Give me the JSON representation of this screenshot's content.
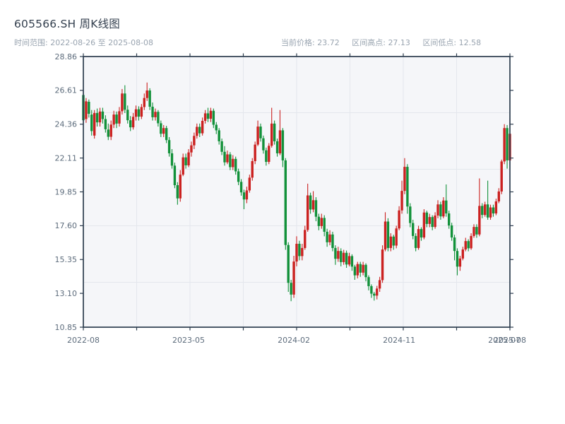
{
  "header": {
    "title": "605566.SH 周K线图",
    "range_label": "时间范围: 2022-08-26 至 2025-08-08",
    "stats": {
      "current": {
        "label": "当前价格:",
        "value": "23.72"
      },
      "high": {
        "label": "区间高点:",
        "value": "27.13"
      },
      "low": {
        "label": "区间低点:",
        "value": "12.58"
      }
    }
  },
  "chart_data": {
    "type": "candlestick",
    "symbol": "605566.SH",
    "interval": "weekly",
    "start_date": "2022-08-26",
    "end_date": "2025-08-08",
    "current_price": 23.72,
    "range_high": 27.13,
    "range_low": 12.58,
    "ylim": [
      10.85,
      28.86
    ],
    "y_tick_labels": [
      "28.86",
      "26.61",
      "24.36",
      "22.11",
      "19.85",
      "17.60",
      "15.35",
      "13.10",
      "10.85"
    ],
    "x_labels": [
      {
        "week": 0,
        "label": "2022-08"
      },
      {
        "week": 38,
        "label": "2023-05"
      },
      {
        "week": 76,
        "label": "2024-02"
      },
      {
        "week": 114,
        "label": "2024-11"
      },
      {
        "week": 152,
        "label": "2025-07"
      },
      {
        "week": 154,
        "label": "2025-08"
      }
    ],
    "num_weeks": 155,
    "up_color": "#cb2120",
    "down_color": "#12913a",
    "ohlc": [
      [
        26.3,
        26.6,
        24.4,
        24.62
      ],
      [
        24.7,
        26.1,
        24.45,
        25.88
      ],
      [
        25.85,
        26.0,
        24.8,
        25.05
      ],
      [
        25.0,
        25.3,
        23.6,
        23.9
      ],
      [
        23.6,
        25.3,
        23.4,
        25.1
      ],
      [
        25.1,
        25.4,
        24.2,
        24.48
      ],
      [
        24.48,
        25.45,
        24.2,
        25.2
      ],
      [
        25.2,
        25.45,
        24.4,
        24.7
      ],
      [
        24.7,
        24.95,
        23.8,
        24.02
      ],
      [
        24.0,
        24.4,
        23.3,
        23.52
      ],
      [
        23.52,
        24.6,
        23.3,
        24.33
      ],
      [
        24.33,
        25.25,
        24.1,
        25.0
      ],
      [
        25.0,
        25.2,
        24.1,
        24.4
      ],
      [
        24.4,
        25.5,
        24.2,
        25.22
      ],
      [
        25.22,
        26.7,
        25.0,
        26.4
      ],
      [
        26.4,
        26.95,
        25.1,
        25.32
      ],
      [
        25.32,
        25.6,
        24.4,
        24.62
      ],
      [
        24.62,
        24.9,
        23.9,
        24.15
      ],
      [
        24.15,
        25.1,
        24.0,
        24.85
      ],
      [
        24.85,
        25.6,
        24.6,
        25.35
      ],
      [
        25.35,
        25.55,
        24.6,
        24.86
      ],
      [
        24.86,
        25.7,
        24.7,
        25.5
      ],
      [
        25.5,
        26.4,
        25.3,
        26.1
      ],
      [
        26.1,
        27.13,
        25.9,
        26.6
      ],
      [
        26.6,
        26.75,
        25.3,
        25.52
      ],
      [
        25.52,
        25.8,
        24.6,
        24.82
      ],
      [
        24.82,
        25.4,
        24.6,
        25.18
      ],
      [
        25.18,
        25.3,
        24.2,
        24.42
      ],
      [
        24.42,
        24.6,
        23.5,
        23.72
      ],
      [
        23.72,
        24.3,
        23.5,
        24.1
      ],
      [
        24.1,
        24.25,
        23.1,
        23.3
      ],
      [
        23.3,
        23.5,
        22.2,
        22.42
      ],
      [
        22.42,
        22.7,
        21.4,
        21.6
      ],
      [
        21.6,
        21.8,
        20.1,
        20.3
      ],
      [
        20.3,
        20.5,
        19.0,
        19.42
      ],
      [
        19.42,
        21.3,
        19.2,
        21.0
      ],
      [
        21.0,
        22.4,
        20.9,
        22.15
      ],
      [
        22.15,
        22.4,
        21.4,
        21.62
      ],
      [
        21.62,
        22.7,
        21.5,
        22.48
      ],
      [
        22.48,
        23.2,
        22.2,
        22.95
      ],
      [
        22.95,
        23.8,
        22.7,
        23.58
      ],
      [
        23.58,
        24.4,
        23.4,
        24.18
      ],
      [
        24.18,
        24.4,
        23.5,
        23.75
      ],
      [
        23.75,
        24.8,
        23.6,
        24.58
      ],
      [
        24.58,
        25.3,
        24.4,
        25.08
      ],
      [
        25.08,
        25.45,
        24.5,
        24.72
      ],
      [
        24.72,
        25.45,
        24.5,
        25.25
      ],
      [
        25.25,
        25.4,
        24.1,
        24.32
      ],
      [
        24.32,
        24.5,
        23.7,
        23.95
      ],
      [
        23.95,
        24.1,
        23.0,
        23.22
      ],
      [
        23.22,
        23.4,
        22.3,
        22.52
      ],
      [
        22.52,
        22.9,
        21.6,
        21.82
      ],
      [
        21.82,
        22.6,
        21.7,
        22.35
      ],
      [
        22.35,
        22.5,
        21.3,
        21.5
      ],
      [
        21.5,
        22.3,
        21.3,
        22.05
      ],
      [
        22.05,
        22.2,
        21.0,
        21.22
      ],
      [
        21.22,
        21.4,
        20.3,
        20.52
      ],
      [
        20.52,
        20.7,
        19.6,
        19.82
      ],
      [
        19.82,
        20.0,
        18.7,
        19.35
      ],
      [
        19.35,
        20.2,
        19.1,
        19.95
      ],
      [
        19.95,
        21.0,
        19.8,
        20.8
      ],
      [
        20.8,
        22.1,
        20.6,
        21.9
      ],
      [
        21.9,
        23.2,
        21.7,
        23.0
      ],
      [
        23.0,
        24.6,
        22.9,
        24.2
      ],
      [
        24.2,
        24.4,
        23.2,
        23.42
      ],
      [
        23.42,
        23.6,
        22.4,
        22.62
      ],
      [
        22.62,
        22.8,
        21.6,
        21.85
      ],
      [
        21.85,
        23.1,
        21.7,
        22.92
      ],
      [
        22.92,
        25.45,
        22.8,
        24.4
      ],
      [
        24.4,
        24.6,
        23.0,
        23.22
      ],
      [
        23.22,
        23.4,
        22.2,
        22.42
      ],
      [
        22.42,
        25.3,
        22.3,
        23.95
      ],
      [
        23.95,
        24.1,
        21.5,
        21.95
      ],
      [
        21.95,
        22.1,
        16.0,
        16.32
      ],
      [
        16.32,
        16.5,
        13.2,
        13.8
      ],
      [
        13.8,
        14.0,
        12.58,
        13.02
      ],
      [
        13.02,
        15.6,
        12.8,
        15.22
      ],
      [
        15.22,
        16.9,
        14.9,
        16.4
      ],
      [
        16.4,
        16.6,
        15.3,
        15.58
      ],
      [
        15.58,
        16.4,
        15.3,
        16.12
      ],
      [
        16.12,
        17.6,
        16.0,
        17.32
      ],
      [
        17.32,
        20.4,
        17.2,
        19.62
      ],
      [
        19.62,
        19.8,
        18.4,
        18.68
      ],
      [
        18.68,
        19.9,
        18.5,
        19.3
      ],
      [
        19.3,
        19.5,
        17.9,
        18.2
      ],
      [
        18.2,
        18.4,
        17.3,
        17.58
      ],
      [
        17.58,
        18.4,
        17.4,
        18.12
      ],
      [
        18.12,
        18.3,
        16.9,
        17.2
      ],
      [
        17.2,
        17.4,
        16.2,
        16.5
      ],
      [
        16.5,
        17.3,
        16.3,
        17.02
      ],
      [
        17.02,
        17.2,
        15.9,
        16.12
      ],
      [
        16.12,
        16.3,
        15.0,
        15.4
      ],
      [
        15.4,
        16.2,
        15.2,
        15.92
      ],
      [
        15.92,
        16.1,
        14.9,
        15.18
      ],
      [
        15.18,
        16.0,
        15.0,
        15.8
      ],
      [
        15.8,
        15.95,
        14.8,
        15.02
      ],
      [
        15.02,
        15.8,
        14.9,
        15.58
      ],
      [
        15.58,
        15.7,
        14.6,
        14.88
      ],
      [
        14.88,
        15.0,
        14.0,
        14.3
      ],
      [
        14.3,
        15.2,
        14.1,
        15.05
      ],
      [
        15.05,
        15.2,
        14.2,
        14.48
      ],
      [
        14.48,
        15.2,
        14.3,
        15.0
      ],
      [
        15.0,
        15.1,
        13.9,
        14.18
      ],
      [
        14.18,
        14.3,
        13.3,
        13.58
      ],
      [
        13.58,
        13.7,
        12.8,
        13.08
      ],
      [
        13.08,
        13.2,
        12.62,
        12.95
      ],
      [
        12.95,
        13.6,
        12.7,
        13.42
      ],
      [
        13.42,
        14.2,
        13.2,
        13.98
      ],
      [
        13.98,
        16.3,
        13.8,
        16.02
      ],
      [
        16.02,
        18.5,
        15.9,
        17.88
      ],
      [
        17.88,
        18.1,
        15.9,
        16.12
      ],
      [
        16.12,
        17.1,
        15.9,
        16.88
      ],
      [
        16.88,
        17.0,
        16.0,
        16.28
      ],
      [
        16.28,
        17.6,
        16.1,
        17.42
      ],
      [
        17.42,
        18.9,
        17.3,
        18.62
      ],
      [
        18.62,
        20.6,
        18.4,
        19.92
      ],
      [
        19.92,
        22.1,
        19.7,
        21.52
      ],
      [
        21.52,
        21.7,
        18.4,
        18.88
      ],
      [
        18.88,
        19.1,
        17.5,
        17.78
      ],
      [
        17.78,
        18.0,
        16.7,
        16.92
      ],
      [
        16.92,
        17.1,
        15.9,
        16.12
      ],
      [
        16.12,
        17.6,
        16.0,
        17.38
      ],
      [
        17.38,
        17.5,
        16.6,
        16.82
      ],
      [
        16.82,
        18.7,
        16.7,
        18.48
      ],
      [
        18.48,
        18.6,
        17.5,
        17.72
      ],
      [
        17.72,
        18.4,
        17.5,
        18.18
      ],
      [
        18.18,
        18.3,
        17.3,
        17.52
      ],
      [
        17.52,
        18.5,
        17.4,
        18.28
      ],
      [
        18.28,
        19.3,
        18.1,
        19.02
      ],
      [
        19.02,
        19.2,
        18.0,
        18.22
      ],
      [
        18.22,
        19.5,
        18.1,
        19.28
      ],
      [
        19.28,
        20.35,
        18.2,
        18.42
      ],
      [
        18.42,
        18.6,
        17.4,
        17.62
      ],
      [
        17.62,
        17.8,
        16.6,
        16.82
      ],
      [
        16.82,
        17.0,
        15.3,
        15.92
      ],
      [
        15.92,
        16.1,
        14.3,
        14.88
      ],
      [
        14.88,
        15.6,
        14.6,
        15.42
      ],
      [
        15.42,
        16.2,
        15.3,
        16.02
      ],
      [
        16.02,
        16.8,
        15.9,
        16.58
      ],
      [
        16.58,
        16.7,
        15.9,
        16.1
      ],
      [
        16.1,
        17.1,
        16.0,
        16.92
      ],
      [
        16.92,
        17.7,
        16.8,
        17.52
      ],
      [
        17.52,
        17.7,
        16.8,
        17.02
      ],
      [
        17.02,
        20.75,
        16.9,
        18.92
      ],
      [
        18.92,
        19.1,
        18.1,
        18.32
      ],
      [
        18.32,
        19.2,
        18.2,
        19.02
      ],
      [
        19.02,
        20.6,
        18.0,
        18.15
      ],
      [
        18.15,
        19.0,
        18.0,
        18.82
      ],
      [
        18.82,
        19.0,
        18.2,
        18.42
      ],
      [
        18.42,
        19.4,
        18.3,
        19.22
      ],
      [
        19.22,
        20.1,
        19.1,
        19.88
      ],
      [
        19.88,
        22.0,
        19.7,
        21.88
      ],
      [
        21.88,
        24.36,
        21.7,
        24.1
      ],
      [
        24.1,
        24.3,
        21.4,
        21.95
      ],
      [
        21.95,
        24.75,
        21.7,
        23.72
      ]
    ]
  }
}
